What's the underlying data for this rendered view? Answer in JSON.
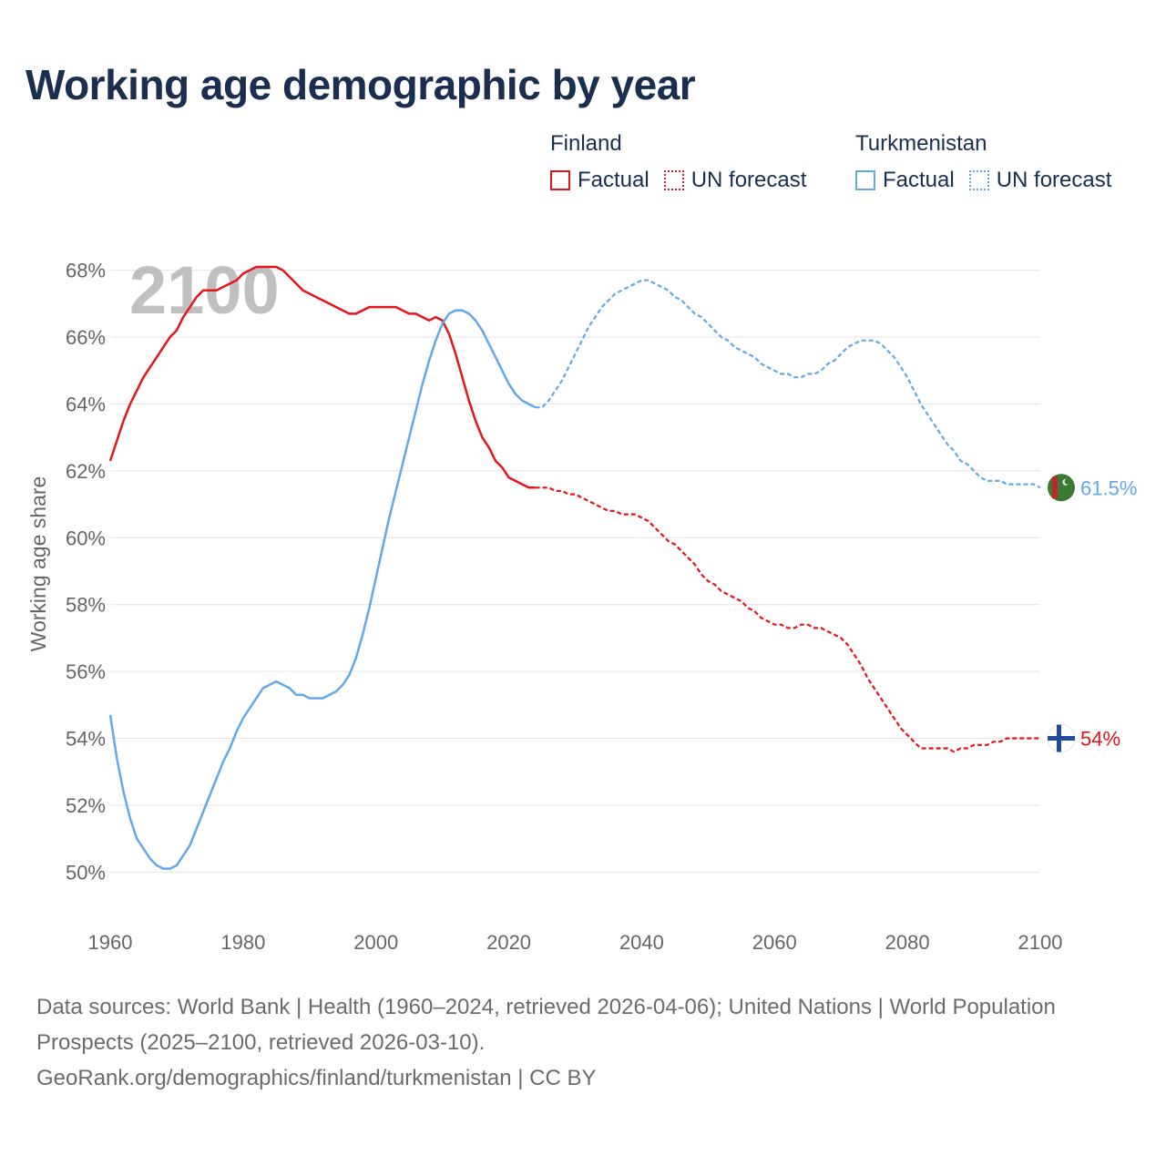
{
  "title": "Working age demographic by year",
  "legend": [
    {
      "country": "Finland",
      "factual_label": "Factual",
      "forecast_label": "UN forecast",
      "color": "#e8131b"
    },
    {
      "country": "Turkmenistan",
      "factual_label": "Factual",
      "forecast_label": "UN forecast",
      "color": "#63a9e8"
    }
  ],
  "year_overlay": "2100",
  "footer": {
    "sources": "Data sources: World Bank | Health (1960–2024, retrieved 2026-04-06); United Nations | World Population Prospects (2025–2100, retrieved 2026-03-10).",
    "link": "GeoRank.org/demographics/finland/turkmenistan | CC BY"
  },
  "chart_data": {
    "type": "line",
    "ylabel": "Working age share",
    "xlabel": "",
    "xlim": [
      1960,
      2100
    ],
    "ylim": [
      49,
      69
    ],
    "x_ticks": [
      1960,
      1980,
      2000,
      2020,
      2040,
      2060,
      2080,
      2100
    ],
    "y_ticks": [
      50,
      52,
      54,
      56,
      58,
      60,
      62,
      64,
      66,
      68
    ],
    "y_tick_labels": [
      "50%",
      "52%",
      "54%",
      "56%",
      "58%",
      "60%",
      "62%",
      "64%",
      "66%",
      "68%"
    ],
    "grid": true,
    "factual_range": [
      1960,
      2024
    ],
    "forecast_range": [
      2025,
      2100
    ],
    "series": [
      {
        "name": "Finland",
        "color": "#e8131b",
        "end_label": "54%",
        "flag_icon": "finland-flag-icon",
        "points": [
          [
            1960,
            62.3
          ],
          [
            1961,
            62.9
          ],
          [
            1962,
            63.5
          ],
          [
            1963,
            64.0
          ],
          [
            1964,
            64.4
          ],
          [
            1965,
            64.8
          ],
          [
            1966,
            65.1
          ],
          [
            1967,
            65.4
          ],
          [
            1968,
            65.7
          ],
          [
            1969,
            66.0
          ],
          [
            1970,
            66.2
          ],
          [
            1971,
            66.6
          ],
          [
            1972,
            66.9
          ],
          [
            1973,
            67.2
          ],
          [
            1974,
            67.4
          ],
          [
            1975,
            67.4
          ],
          [
            1976,
            67.4
          ],
          [
            1977,
            67.5
          ],
          [
            1978,
            67.6
          ],
          [
            1979,
            67.7
          ],
          [
            1980,
            67.9
          ],
          [
            1981,
            68.0
          ],
          [
            1982,
            68.1
          ],
          [
            1983,
            68.1
          ],
          [
            1984,
            68.1
          ],
          [
            1985,
            68.1
          ],
          [
            1986,
            68.0
          ],
          [
            1987,
            67.8
          ],
          [
            1988,
            67.6
          ],
          [
            1989,
            67.4
          ],
          [
            1990,
            67.3
          ],
          [
            1991,
            67.2
          ],
          [
            1992,
            67.1
          ],
          [
            1993,
            67.0
          ],
          [
            1994,
            66.9
          ],
          [
            1995,
            66.8
          ],
          [
            1996,
            66.7
          ],
          [
            1997,
            66.7
          ],
          [
            1998,
            66.8
          ],
          [
            1999,
            66.9
          ],
          [
            2000,
            66.9
          ],
          [
            2001,
            66.9
          ],
          [
            2002,
            66.9
          ],
          [
            2003,
            66.9
          ],
          [
            2004,
            66.8
          ],
          [
            2005,
            66.7
          ],
          [
            2006,
            66.7
          ],
          [
            2007,
            66.6
          ],
          [
            2008,
            66.5
          ],
          [
            2009,
            66.6
          ],
          [
            2010,
            66.5
          ],
          [
            2011,
            66.1
          ],
          [
            2012,
            65.5
          ],
          [
            2013,
            64.8
          ],
          [
            2014,
            64.1
          ],
          [
            2015,
            63.5
          ],
          [
            2016,
            63.0
          ],
          [
            2017,
            62.7
          ],
          [
            2018,
            62.3
          ],
          [
            2019,
            62.1
          ],
          [
            2020,
            61.8
          ],
          [
            2021,
            61.7
          ],
          [
            2022,
            61.6
          ],
          [
            2023,
            61.5
          ],
          [
            2024,
            61.5
          ],
          [
            2025,
            61.5
          ],
          [
            2026,
            61.5
          ],
          [
            2027,
            61.4
          ],
          [
            2028,
            61.4
          ],
          [
            2029,
            61.3
          ],
          [
            2030,
            61.3
          ],
          [
            2031,
            61.2
          ],
          [
            2032,
            61.1
          ],
          [
            2033,
            61.0
          ],
          [
            2034,
            60.9
          ],
          [
            2035,
            60.8
          ],
          [
            2036,
            60.8
          ],
          [
            2037,
            60.7
          ],
          [
            2038,
            60.7
          ],
          [
            2039,
            60.7
          ],
          [
            2040,
            60.6
          ],
          [
            2041,
            60.5
          ],
          [
            2042,
            60.3
          ],
          [
            2043,
            60.1
          ],
          [
            2044,
            59.9
          ],
          [
            2045,
            59.8
          ],
          [
            2046,
            59.6
          ],
          [
            2047,
            59.4
          ],
          [
            2048,
            59.2
          ],
          [
            2049,
            58.9
          ],
          [
            2050,
            58.7
          ],
          [
            2051,
            58.6
          ],
          [
            2052,
            58.4
          ],
          [
            2053,
            58.3
          ],
          [
            2054,
            58.2
          ],
          [
            2055,
            58.1
          ],
          [
            2056,
            57.9
          ],
          [
            2057,
            57.8
          ],
          [
            2058,
            57.6
          ],
          [
            2059,
            57.5
          ],
          [
            2060,
            57.4
          ],
          [
            2061,
            57.4
          ],
          [
            2062,
            57.3
          ],
          [
            2063,
            57.3
          ],
          [
            2064,
            57.4
          ],
          [
            2065,
            57.4
          ],
          [
            2066,
            57.3
          ],
          [
            2067,
            57.3
          ],
          [
            2068,
            57.2
          ],
          [
            2069,
            57.1
          ],
          [
            2070,
            57.0
          ],
          [
            2071,
            56.8
          ],
          [
            2072,
            56.5
          ],
          [
            2073,
            56.2
          ],
          [
            2074,
            55.8
          ],
          [
            2075,
            55.5
          ],
          [
            2076,
            55.2
          ],
          [
            2077,
            54.9
          ],
          [
            2078,
            54.6
          ],
          [
            2079,
            54.3
          ],
          [
            2080,
            54.1
          ],
          [
            2081,
            53.9
          ],
          [
            2082,
            53.7
          ],
          [
            2083,
            53.7
          ],
          [
            2084,
            53.7
          ],
          [
            2085,
            53.7
          ],
          [
            2086,
            53.7
          ],
          [
            2087,
            53.6
          ],
          [
            2088,
            53.7
          ],
          [
            2089,
            53.7
          ],
          [
            2090,
            53.8
          ],
          [
            2091,
            53.8
          ],
          [
            2092,
            53.8
          ],
          [
            2093,
            53.9
          ],
          [
            2094,
            53.9
          ],
          [
            2095,
            54.0
          ],
          [
            2096,
            54.0
          ],
          [
            2097,
            54.0
          ],
          [
            2098,
            54.0
          ],
          [
            2099,
            54.0
          ],
          [
            2100,
            54.0
          ]
        ]
      },
      {
        "name": "Turkmenistan",
        "color": "#63a9e8",
        "end_label": "61.5%",
        "flag_icon": "turkmenistan-flag-icon",
        "points": [
          [
            1960,
            54.7
          ],
          [
            1961,
            53.4
          ],
          [
            1962,
            52.4
          ],
          [
            1963,
            51.6
          ],
          [
            1964,
            51.0
          ],
          [
            1965,
            50.7
          ],
          [
            1966,
            50.4
          ],
          [
            1967,
            50.2
          ],
          [
            1968,
            50.1
          ],
          [
            1969,
            50.1
          ],
          [
            1970,
            50.2
          ],
          [
            1971,
            50.5
          ],
          [
            1972,
            50.8
          ],
          [
            1973,
            51.3
          ],
          [
            1974,
            51.8
          ],
          [
            1975,
            52.3
          ],
          [
            1976,
            52.8
          ],
          [
            1977,
            53.3
          ],
          [
            1978,
            53.7
          ],
          [
            1979,
            54.2
          ],
          [
            1980,
            54.6
          ],
          [
            1981,
            54.9
          ],
          [
            1982,
            55.2
          ],
          [
            1983,
            55.5
          ],
          [
            1984,
            55.6
          ],
          [
            1985,
            55.7
          ],
          [
            1986,
            55.6
          ],
          [
            1987,
            55.5
          ],
          [
            1988,
            55.3
          ],
          [
            1989,
            55.3
          ],
          [
            1990,
            55.2
          ],
          [
            1991,
            55.2
          ],
          [
            1992,
            55.2
          ],
          [
            1993,
            55.3
          ],
          [
            1994,
            55.4
          ],
          [
            1995,
            55.6
          ],
          [
            1996,
            55.9
          ],
          [
            1997,
            56.4
          ],
          [
            1998,
            57.1
          ],
          [
            1999,
            57.9
          ],
          [
            2000,
            58.8
          ],
          [
            2001,
            59.7
          ],
          [
            2002,
            60.6
          ],
          [
            2003,
            61.4
          ],
          [
            2004,
            62.2
          ],
          [
            2005,
            63.0
          ],
          [
            2006,
            63.8
          ],
          [
            2007,
            64.6
          ],
          [
            2008,
            65.3
          ],
          [
            2009,
            65.9
          ],
          [
            2010,
            66.4
          ],
          [
            2011,
            66.7
          ],
          [
            2012,
            66.8
          ],
          [
            2013,
            66.8
          ],
          [
            2014,
            66.7
          ],
          [
            2015,
            66.5
          ],
          [
            2016,
            66.2
          ],
          [
            2017,
            65.8
          ],
          [
            2018,
            65.4
          ],
          [
            2019,
            65.0
          ],
          [
            2020,
            64.6
          ],
          [
            2021,
            64.3
          ],
          [
            2022,
            64.1
          ],
          [
            2023,
            64.0
          ],
          [
            2024,
            63.9
          ],
          [
            2025,
            63.9
          ],
          [
            2026,
            64.1
          ],
          [
            2027,
            64.4
          ],
          [
            2028,
            64.7
          ],
          [
            2029,
            65.1
          ],
          [
            2030,
            65.5
          ],
          [
            2031,
            65.9
          ],
          [
            2032,
            66.3
          ],
          [
            2033,
            66.6
          ],
          [
            2034,
            66.9
          ],
          [
            2035,
            67.1
          ],
          [
            2036,
            67.3
          ],
          [
            2037,
            67.4
          ],
          [
            2038,
            67.5
          ],
          [
            2039,
            67.6
          ],
          [
            2040,
            67.7
          ],
          [
            2041,
            67.7
          ],
          [
            2042,
            67.6
          ],
          [
            2043,
            67.5
          ],
          [
            2044,
            67.4
          ],
          [
            2045,
            67.2
          ],
          [
            2046,
            67.1
          ],
          [
            2047,
            66.9
          ],
          [
            2048,
            66.7
          ],
          [
            2049,
            66.6
          ],
          [
            2050,
            66.4
          ],
          [
            2051,
            66.2
          ],
          [
            2052,
            66.0
          ],
          [
            2053,
            65.9
          ],
          [
            2054,
            65.7
          ],
          [
            2055,
            65.6
          ],
          [
            2056,
            65.5
          ],
          [
            2057,
            65.4
          ],
          [
            2058,
            65.2
          ],
          [
            2059,
            65.1
          ],
          [
            2060,
            65.0
          ],
          [
            2061,
            64.9
          ],
          [
            2062,
            64.9
          ],
          [
            2063,
            64.8
          ],
          [
            2064,
            64.8
          ],
          [
            2065,
            64.9
          ],
          [
            2066,
            64.9
          ],
          [
            2067,
            65.0
          ],
          [
            2068,
            65.2
          ],
          [
            2069,
            65.3
          ],
          [
            2070,
            65.5
          ],
          [
            2071,
            65.7
          ],
          [
            2072,
            65.8
          ],
          [
            2073,
            65.9
          ],
          [
            2074,
            65.9
          ],
          [
            2075,
            65.9
          ],
          [
            2076,
            65.8
          ],
          [
            2077,
            65.6
          ],
          [
            2078,
            65.4
          ],
          [
            2079,
            65.1
          ],
          [
            2080,
            64.8
          ],
          [
            2081,
            64.4
          ],
          [
            2082,
            64.0
          ],
          [
            2083,
            63.7
          ],
          [
            2084,
            63.4
          ],
          [
            2085,
            63.1
          ],
          [
            2086,
            62.8
          ],
          [
            2087,
            62.6
          ],
          [
            2088,
            62.3
          ],
          [
            2089,
            62.2
          ],
          [
            2090,
            62.0
          ],
          [
            2091,
            61.8
          ],
          [
            2092,
            61.7
          ],
          [
            2093,
            61.7
          ],
          [
            2094,
            61.7
          ],
          [
            2095,
            61.6
          ],
          [
            2096,
            61.6
          ],
          [
            2097,
            61.6
          ],
          [
            2098,
            61.6
          ],
          [
            2099,
            61.6
          ],
          [
            2100,
            61.5
          ]
        ]
      }
    ]
  }
}
